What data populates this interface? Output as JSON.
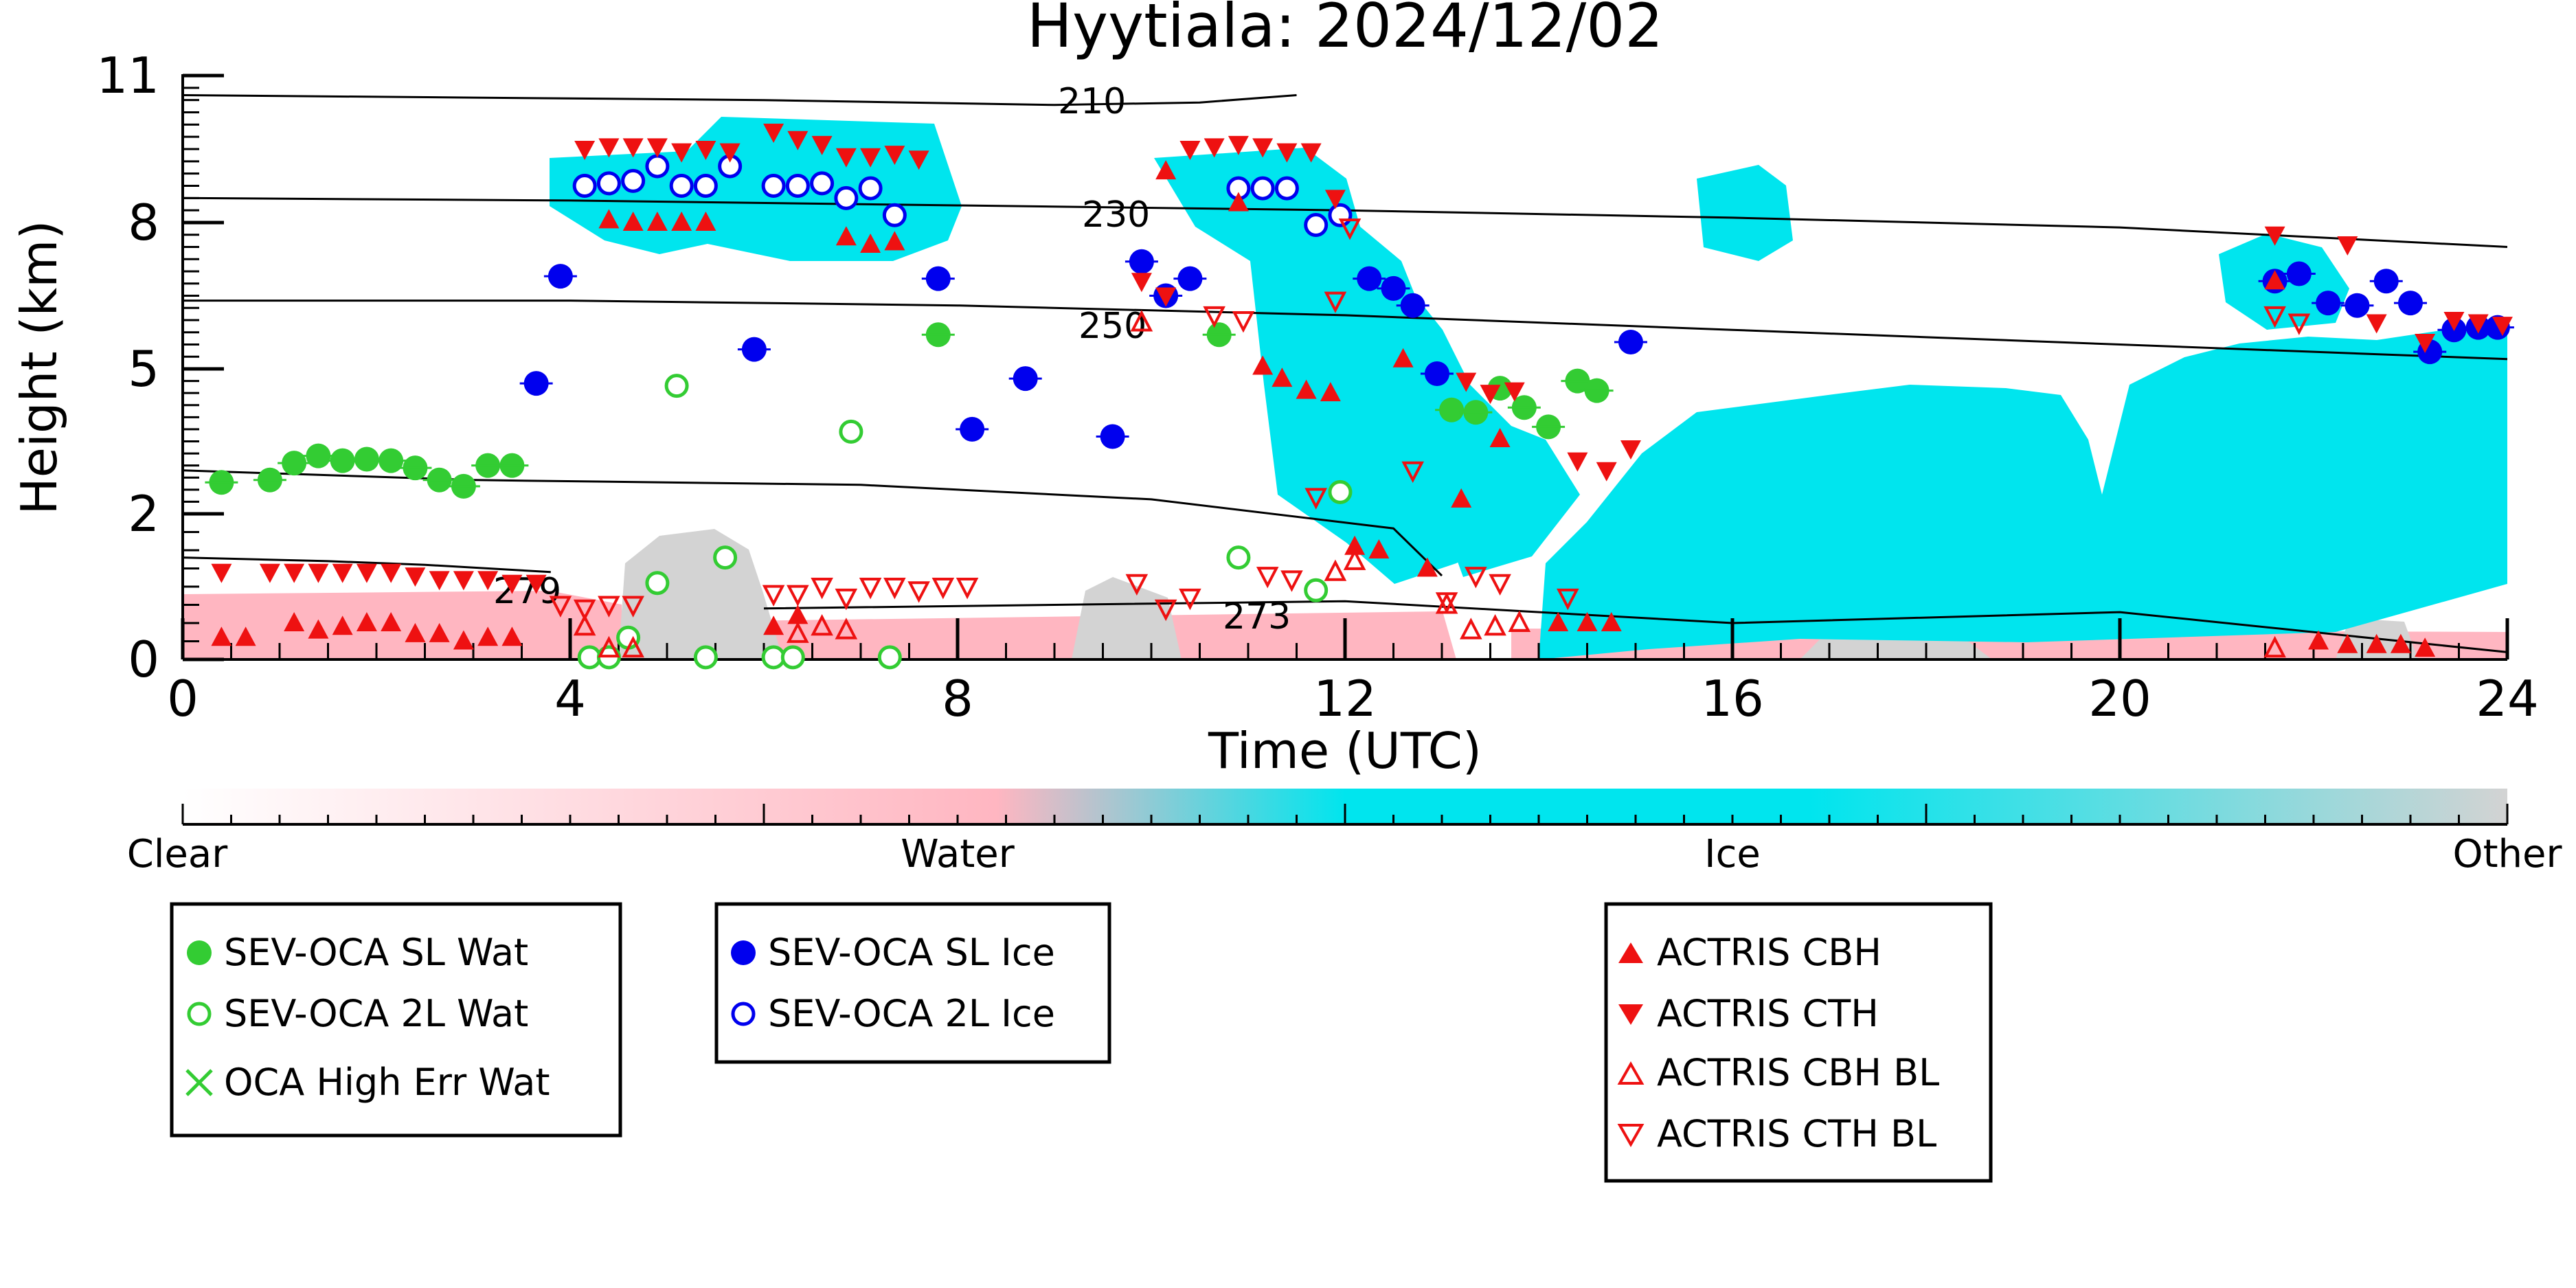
{
  "chart_data": {
    "type": "scatter",
    "title": "Hyytiala: 2024/12/02",
    "xlabel": "Time (UTC)",
    "ylabel": "Height (km)",
    "xlim": [
      0,
      24
    ],
    "ylim": [
      0,
      11
    ],
    "x_ticks": [
      "0",
      "4",
      "8",
      "12",
      "16",
      "20",
      "24"
    ],
    "y_ticks": [
      "0",
      "2",
      "5",
      "8",
      "11"
    ],
    "grid": false,
    "colorbar": {
      "labels": [
        "Clear",
        "Water",
        "Ice",
        "Other"
      ],
      "colors": [
        "#ffffff",
        "#ffb6c1",
        "#00e5ee",
        "#d3d3d3"
      ]
    },
    "isotherm_labels": [
      "210",
      "230",
      "250",
      "279",
      "273"
    ],
    "isotherms": [
      {
        "label": "210",
        "x": [
          0,
          3,
          6,
          9,
          10.5,
          11.5
        ],
        "y": [
          10.6,
          10.55,
          10.5,
          10.4,
          10.45,
          10.6
        ]
      },
      {
        "label": "230",
        "x": [
          0,
          4,
          8,
          12,
          16,
          20,
          24
        ],
        "y": [
          8.5,
          8.45,
          8.35,
          8.25,
          8.1,
          7.9,
          7.5
        ]
      },
      {
        "label": "250",
        "x": [
          0,
          4,
          8,
          12,
          16,
          20,
          24
        ],
        "y": [
          6.4,
          6.4,
          6.3,
          6.1,
          5.8,
          5.5,
          5.2
        ]
      },
      {
        "label": "",
        "x": [
          0,
          3,
          7,
          10,
          12.5,
          13
        ],
        "y": [
          2.9,
          2.7,
          2.6,
          2.3,
          1.8,
          1.15
        ]
      },
      {
        "label": "279",
        "x": [
          0,
          1.5,
          2.5,
          3.8
        ],
        "y": [
          1.4,
          1.35,
          1.3,
          1.2
        ]
      },
      {
        "label": "273",
        "x": [
          6,
          9,
          12,
          16,
          20,
          24
        ],
        "y": [
          0.7,
          0.75,
          0.8,
          0.5,
          0.65,
          0.1
        ]
      }
    ],
    "series": [
      {
        "name": "SEV-OCA SL Wat",
        "marker": "filled-circle",
        "color": "#33cc33",
        "points": [
          [
            0.4,
            2.65
          ],
          [
            0.9,
            2.7
          ],
          [
            1.15,
            3.05
          ],
          [
            1.4,
            3.2
          ],
          [
            1.65,
            3.1
          ],
          [
            1.9,
            3.13
          ],
          [
            2.15,
            3.1
          ],
          [
            2.4,
            2.95
          ],
          [
            2.65,
            2.7
          ],
          [
            2.9,
            2.57
          ],
          [
            3.15,
            3.0
          ],
          [
            3.4,
            3.0
          ],
          [
            7.8,
            5.7
          ],
          [
            10.7,
            5.7
          ],
          [
            13.1,
            4.15
          ],
          [
            13.35,
            4.1
          ],
          [
            13.6,
            4.6
          ],
          [
            13.85,
            4.2
          ],
          [
            14.1,
            3.8
          ],
          [
            14.4,
            4.75
          ],
          [
            14.6,
            4.55
          ]
        ]
      },
      {
        "name": "SEV-OCA 2L Wat",
        "marker": "open-circle",
        "color": "#33cc33",
        "points": [
          [
            4.2,
            0.03
          ],
          [
            4.4,
            0.03
          ],
          [
            4.6,
            0.3
          ],
          [
            4.9,
            1.05
          ],
          [
            5.1,
            4.65
          ],
          [
            5.4,
            0.03
          ],
          [
            5.6,
            1.4
          ],
          [
            6.1,
            0.03
          ],
          [
            6.3,
            0.03
          ],
          [
            6.9,
            3.7
          ],
          [
            7.3,
            0.03
          ],
          [
            10.9,
            1.4
          ],
          [
            11.7,
            0.95
          ],
          [
            11.95,
            2.45
          ]
        ]
      },
      {
        "name": "OCA High Err Wat",
        "marker": "x",
        "color": "#33cc33",
        "points": []
      },
      {
        "name": "SEV-OCA SL Ice",
        "marker": "filled-circle",
        "color": "#0000ee",
        "points": [
          [
            3.9,
            6.9
          ],
          [
            3.65,
            4.7
          ],
          [
            5.9,
            5.4
          ],
          [
            7.8,
            6.85
          ],
          [
            8.15,
            3.75
          ],
          [
            8.7,
            4.8
          ],
          [
            9.6,
            3.6
          ],
          [
            9.9,
            7.2
          ],
          [
            10.15,
            6.5
          ],
          [
            10.4,
            6.85
          ],
          [
            12.25,
            6.85
          ],
          [
            12.5,
            6.65
          ],
          [
            12.7,
            6.3
          ],
          [
            12.95,
            4.9
          ],
          [
            14.95,
            5.55
          ],
          [
            21.6,
            6.8
          ],
          [
            21.85,
            6.95
          ],
          [
            22.15,
            6.35
          ],
          [
            22.45,
            6.3
          ],
          [
            22.75,
            6.8
          ],
          [
            23.0,
            6.35
          ],
          [
            23.2,
            5.35
          ],
          [
            23.45,
            5.8
          ],
          [
            23.7,
            5.85
          ],
          [
            23.9,
            5.85
          ]
        ]
      },
      {
        "name": "SEV-OCA 2L Ice",
        "marker": "open-circle",
        "color": "#0000ee",
        "points": [
          [
            4.15,
            8.75
          ],
          [
            4.4,
            8.8
          ],
          [
            4.65,
            8.85
          ],
          [
            4.9,
            9.15
          ],
          [
            5.15,
            8.75
          ],
          [
            5.4,
            8.75
          ],
          [
            5.65,
            9.15
          ],
          [
            6.1,
            8.75
          ],
          [
            6.35,
            8.75
          ],
          [
            6.6,
            8.8
          ],
          [
            6.85,
            8.5
          ],
          [
            7.1,
            8.7
          ],
          [
            7.35,
            8.15
          ],
          [
            10.9,
            8.7
          ],
          [
            11.15,
            8.7
          ],
          [
            11.4,
            8.7
          ],
          [
            11.7,
            7.95
          ],
          [
            11.95,
            8.15
          ]
        ]
      },
      {
        "name": "ACTRIS CBH",
        "marker": "triangle-up",
        "color": "#ee1111",
        "points": [
          [
            0.4,
            0.3
          ],
          [
            0.65,
            0.3
          ],
          [
            1.15,
            0.5
          ],
          [
            1.4,
            0.4
          ],
          [
            1.65,
            0.45
          ],
          [
            1.9,
            0.5
          ],
          [
            2.15,
            0.5
          ],
          [
            2.4,
            0.35
          ],
          [
            2.65,
            0.35
          ],
          [
            2.9,
            0.25
          ],
          [
            3.15,
            0.3
          ],
          [
            3.4,
            0.3
          ],
          [
            4.4,
            8.05
          ],
          [
            4.65,
            8.0
          ],
          [
            4.9,
            8.0
          ],
          [
            5.15,
            8.0
          ],
          [
            5.4,
            8.0
          ],
          [
            6.1,
            0.45
          ],
          [
            6.35,
            0.6
          ],
          [
            6.85,
            7.7
          ],
          [
            7.1,
            7.55
          ],
          [
            7.35,
            7.6
          ],
          [
            10.15,
            9.05
          ],
          [
            10.9,
            8.4
          ],
          [
            11.15,
            5.05
          ],
          [
            11.35,
            4.8
          ],
          [
            11.6,
            4.55
          ],
          [
            11.85,
            4.5
          ],
          [
            12.1,
            1.55
          ],
          [
            12.35,
            1.5
          ],
          [
            12.6,
            5.2
          ],
          [
            12.85,
            1.25
          ],
          [
            13.2,
            2.3
          ],
          [
            13.6,
            3.55
          ],
          [
            14.2,
            0.5
          ],
          [
            14.5,
            0.5
          ],
          [
            14.75,
            0.5
          ],
          [
            21.6,
            6.8
          ],
          [
            22.05,
            0.25
          ],
          [
            22.35,
            0.2
          ],
          [
            22.65,
            0.2
          ],
          [
            22.9,
            0.2
          ],
          [
            23.15,
            0.15
          ]
        ]
      },
      {
        "name": "ACTRIS CTH",
        "marker": "triangle-down",
        "color": "#ee1111",
        "points": [
          [
            0.4,
            1.2
          ],
          [
            0.9,
            1.2
          ],
          [
            1.15,
            1.2
          ],
          [
            1.4,
            1.2
          ],
          [
            1.65,
            1.2
          ],
          [
            1.9,
            1.2
          ],
          [
            2.15,
            1.2
          ],
          [
            2.4,
            1.15
          ],
          [
            2.65,
            1.1
          ],
          [
            2.9,
            1.1
          ],
          [
            3.15,
            1.1
          ],
          [
            3.4,
            1.05
          ],
          [
            3.65,
            1.05
          ],
          [
            4.15,
            9.5
          ],
          [
            4.4,
            9.55
          ],
          [
            4.65,
            9.55
          ],
          [
            4.9,
            9.55
          ],
          [
            5.15,
            9.45
          ],
          [
            5.4,
            9.5
          ],
          [
            5.65,
            9.45
          ],
          [
            6.1,
            9.85
          ],
          [
            6.35,
            9.7
          ],
          [
            6.6,
            9.6
          ],
          [
            6.85,
            9.35
          ],
          [
            7.1,
            9.35
          ],
          [
            7.35,
            9.4
          ],
          [
            7.6,
            9.3
          ],
          [
            9.9,
            6.8
          ],
          [
            10.15,
            6.5
          ],
          [
            10.4,
            9.5
          ],
          [
            10.65,
            9.55
          ],
          [
            10.9,
            9.6
          ],
          [
            11.15,
            9.55
          ],
          [
            11.4,
            9.45
          ],
          [
            11.65,
            9.45
          ],
          [
            11.9,
            8.5
          ],
          [
            13.25,
            4.75
          ],
          [
            13.5,
            4.5
          ],
          [
            13.75,
            4.55
          ],
          [
            14.4,
            3.1
          ],
          [
            14.7,
            2.9
          ],
          [
            14.95,
            3.35
          ],
          [
            21.6,
            7.75
          ],
          [
            22.35,
            7.55
          ],
          [
            22.65,
            5.95
          ],
          [
            23.15,
            5.55
          ],
          [
            23.45,
            6.0
          ],
          [
            23.7,
            5.95
          ],
          [
            23.95,
            5.9
          ]
        ]
      },
      {
        "name": "ACTRIS CBH BL",
        "marker": "open-triangle-up",
        "color": "#ee1111",
        "points": [
          [
            4.15,
            0.45
          ],
          [
            4.4,
            0.15
          ],
          [
            4.65,
            0.15
          ],
          [
            6.35,
            0.35
          ],
          [
            6.6,
            0.45
          ],
          [
            6.85,
            0.4
          ],
          [
            9.9,
            5.95
          ],
          [
            11.9,
            1.2
          ],
          [
            12.1,
            1.35
          ],
          [
            13.05,
            0.75
          ],
          [
            13.3,
            0.4
          ],
          [
            13.55,
            0.45
          ],
          [
            13.8,
            0.5
          ],
          [
            21.6,
            0.15
          ]
        ]
      },
      {
        "name": "ACTRIS CTH BL",
        "marker": "open-triangle-down",
        "color": "#ee1111",
        "points": [
          [
            3.9,
            0.75
          ],
          [
            4.15,
            0.7
          ],
          [
            4.4,
            0.75
          ],
          [
            4.65,
            0.75
          ],
          [
            6.1,
            0.9
          ],
          [
            6.35,
            0.9
          ],
          [
            6.6,
            1.0
          ],
          [
            6.85,
            0.85
          ],
          [
            7.1,
            1.0
          ],
          [
            7.35,
            1.0
          ],
          [
            7.6,
            0.95
          ],
          [
            7.85,
            1.0
          ],
          [
            8.1,
            1.0
          ],
          [
            9.85,
            1.05
          ],
          [
            10.15,
            0.7
          ],
          [
            10.4,
            0.85
          ],
          [
            10.65,
            6.1
          ],
          [
            10.95,
            6.0
          ],
          [
            11.2,
            1.15
          ],
          [
            11.45,
            1.1
          ],
          [
            11.7,
            2.35
          ],
          [
            11.9,
            6.4
          ],
          [
            12.05,
            7.9
          ],
          [
            12.7,
            2.9
          ],
          [
            13.05,
            0.8
          ],
          [
            13.35,
            1.15
          ],
          [
            13.6,
            1.05
          ],
          [
            14.3,
            0.85
          ],
          [
            21.6,
            6.1
          ],
          [
            21.85,
            5.95
          ]
        ]
      }
    ]
  },
  "legends": {
    "water": [
      "SEV-OCA SL Wat",
      "SEV-OCA 2L Wat",
      "OCA High Err Wat"
    ],
    "ice": [
      "SEV-OCA SL Ice",
      "SEV-OCA 2L Ice"
    ],
    "actris": [
      "ACTRIS CBH",
      "ACTRIS CTH",
      "ACTRIS CBH BL",
      "ACTRIS CTH BL"
    ]
  }
}
